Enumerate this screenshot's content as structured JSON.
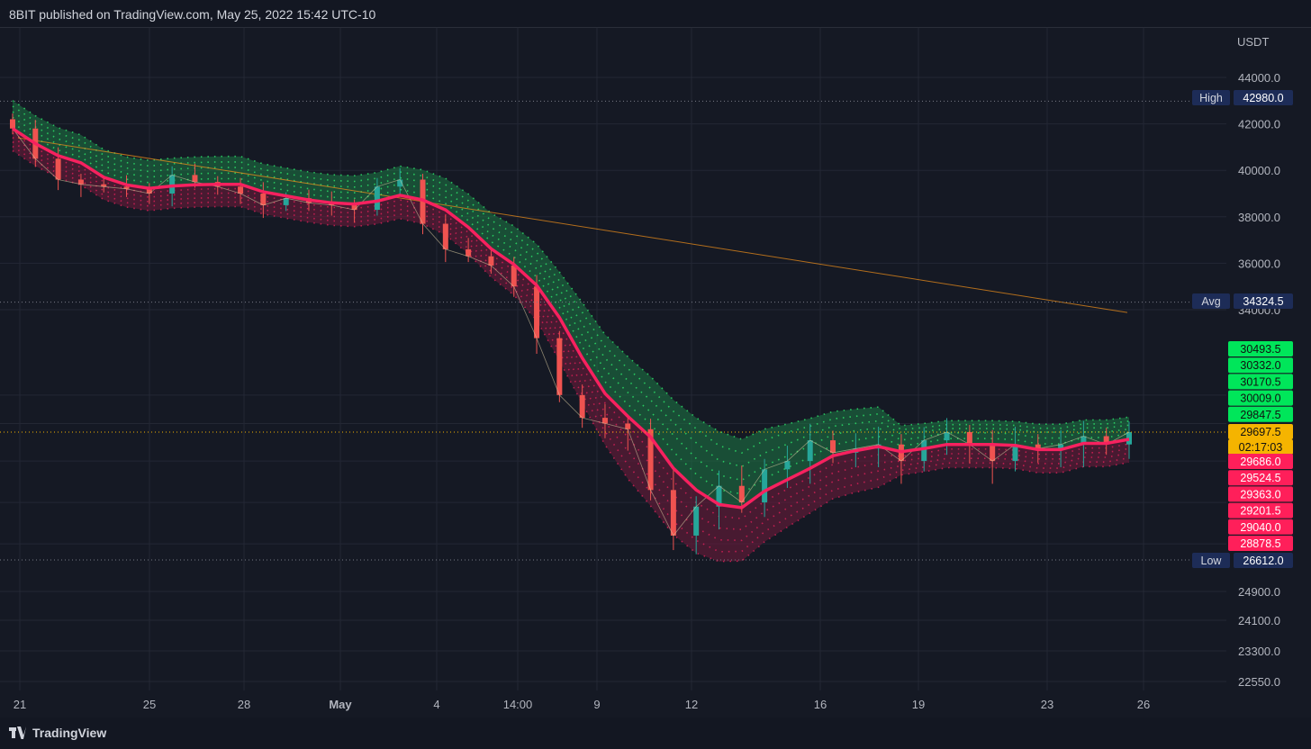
{
  "header": {
    "text": "8BIT published on TradingView.com, May 25, 2022 15:42 UTC-10"
  },
  "footer": {
    "brand": "TradingView"
  },
  "chart_data": {
    "type": "line",
    "ylabel": "USDT",
    "x_ticks": [
      "21",
      "25",
      "28",
      "May",
      "4",
      "14:00",
      "9",
      "12",
      "16",
      "19",
      "23",
      "26"
    ],
    "y_ticks": [
      44000.0,
      42000.0,
      40000.0,
      38000.0,
      36000.0,
      34000.0,
      24900.0,
      24100.0,
      23300.0,
      22550.0
    ],
    "y_tick_labels": [
      "44000.0",
      "42000.0",
      "40000.0",
      "38000.0",
      "36000.0",
      "34000.0",
      "24900.0",
      "24100.0",
      "23300.0",
      "22550.0"
    ],
    "reference_lines": [
      {
        "label": "High",
        "value": "42980.0"
      },
      {
        "label": "Avg",
        "value": "34324.5"
      },
      {
        "label": "Low",
        "value": "26612.0"
      }
    ],
    "current_price": {
      "value": "29697.5",
      "countdown": "02:17:03"
    },
    "upper_band_labels": [
      "30493.5",
      "30332.0",
      "30170.5",
      "30009.0",
      "29847.5"
    ],
    "lower_band_labels": [
      "29686.0",
      "29524.5",
      "29363.0",
      "29201.5",
      "29040.0",
      "28878.5"
    ],
    "close_series_approx": [
      41800,
      40500,
      39600,
      39400,
      39300,
      39200,
      39000,
      39800,
      39500,
      39300,
      39000,
      38500,
      38800,
      38600,
      38500,
      38300,
      39300,
      39600,
      37700,
      36600,
      36300,
      35900,
      35000,
      33000,
      31000,
      30200,
      30000,
      29800,
      28300,
      27200,
      27900,
      28400,
      28000,
      28800,
      29000,
      29500,
      29200,
      29300,
      29400,
      29000,
      29500,
      29700,
      29400,
      29000,
      29400,
      29300,
      29400,
      29600,
      29400,
      29697.5
    ]
  },
  "colors": {
    "background": "#151924",
    "grid": "#232734",
    "bull": "#26a69a",
    "bear": "#ef5350",
    "basis_bear": "#f7215f",
    "basis_bull": "#2ee86b",
    "upper_band": "#1e7a45",
    "lower_band": "#6a1a3a",
    "orange": "#f7931a",
    "tag_green": "#00e65a",
    "tag_red": "#ff1f5a",
    "tag_yellow": "#f5b400",
    "tag_blue": "#1d2c57"
  }
}
